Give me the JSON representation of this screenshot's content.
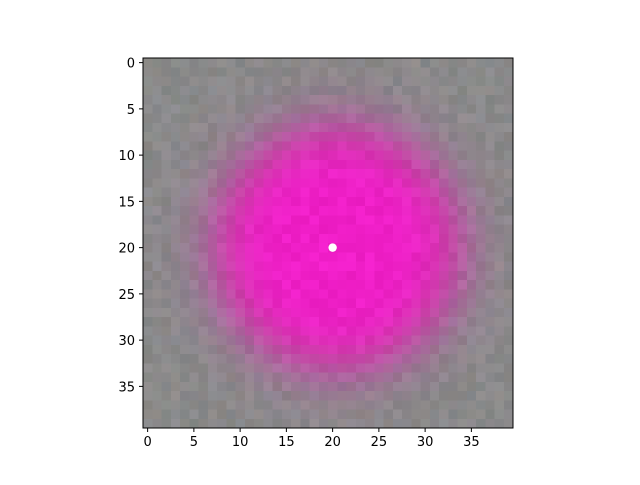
{
  "chart_data": {
    "type": "heatmap",
    "title": "",
    "xlabel": "",
    "ylabel": "",
    "width": 40,
    "height": 40,
    "xlim": [
      -0.5,
      39.5
    ],
    "ylim": [
      39.5,
      -0.5
    ],
    "y_inverted": true,
    "grid": false,
    "legend": "none",
    "xticks": [
      0,
      5,
      10,
      15,
      20,
      25,
      30,
      35
    ],
    "yticks": [
      0,
      5,
      10,
      15,
      20,
      25,
      30,
      35
    ],
    "xtick_labels": [
      "0",
      "5",
      "10",
      "15",
      "20",
      "25",
      "30",
      "35"
    ],
    "ytick_labels": [
      "0",
      "5",
      "10",
      "15",
      "20",
      "25",
      "30",
      "35"
    ],
    "blob": {
      "center": [
        20.5,
        20
      ],
      "radius": 13,
      "edge_softness": 1.6
    },
    "marker": {
      "x": 20,
      "y": 20,
      "color": "#ffffff"
    },
    "colors": {
      "background": "#8a8a8a",
      "blob": "#f01ec8",
      "blob_edge": "#d8208f"
    }
  }
}
